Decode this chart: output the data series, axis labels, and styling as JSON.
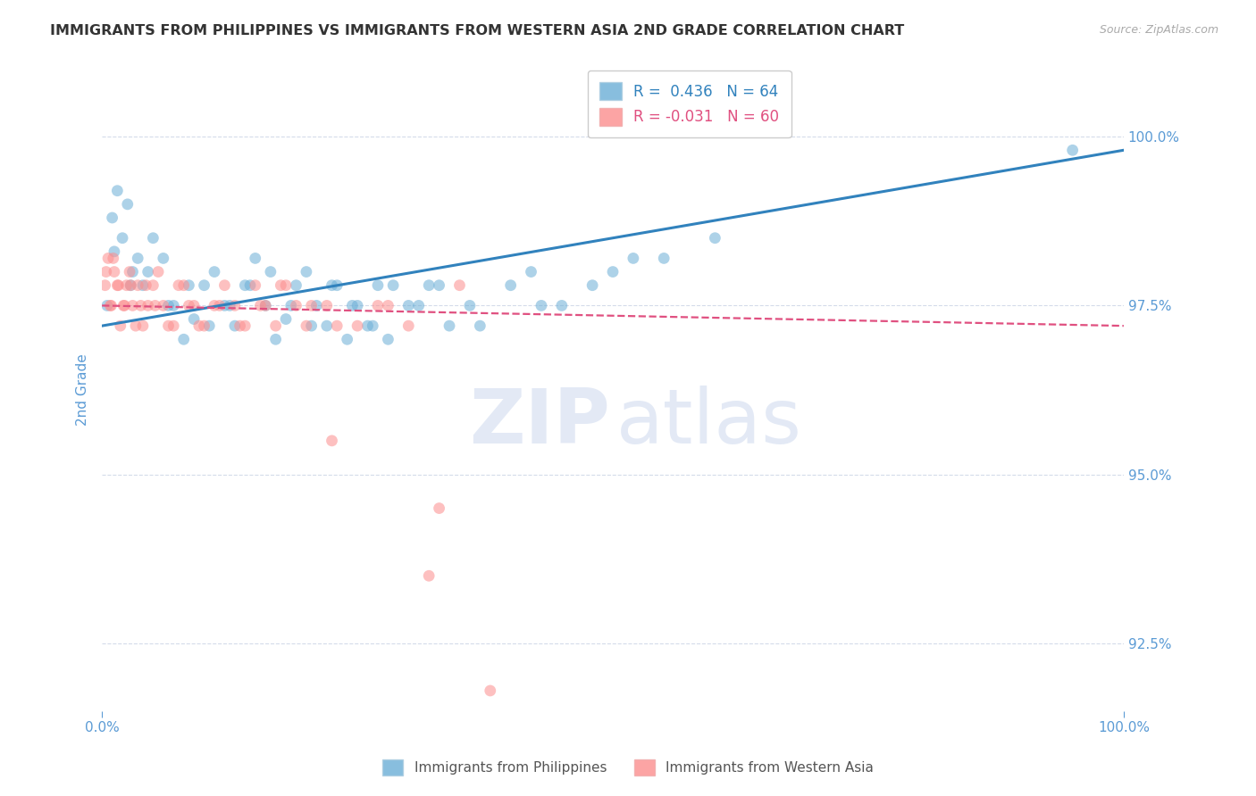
{
  "title": "IMMIGRANTS FROM PHILIPPINES VS IMMIGRANTS FROM WESTERN ASIA 2ND GRADE CORRELATION CHART",
  "source_text": "Source: ZipAtlas.com",
  "ylabel": "2nd Grade",
  "xlim": [
    0.0,
    100.0
  ],
  "ylim": [
    91.5,
    101.0
  ],
  "yticks": [
    92.5,
    95.0,
    97.5,
    100.0
  ],
  "ytick_labels": [
    "92.5%",
    "95.0%",
    "97.5%",
    "100.0%"
  ],
  "xtick_labels": [
    "0.0%",
    "100.0%"
  ],
  "legend_r1": "R =  0.436",
  "legend_n1": "N = 64",
  "legend_r2": "R = -0.031",
  "legend_n2": "N = 60",
  "blue_color": "#6baed6",
  "pink_color": "#fc8d8d",
  "line_blue": "#3182bd",
  "line_pink": "#e05080",
  "blue_scatter_x": [
    0.5,
    1.0,
    1.5,
    2.0,
    2.5,
    3.0,
    3.5,
    4.0,
    5.0,
    6.0,
    7.0,
    8.0,
    9.0,
    10.0,
    11.0,
    12.0,
    13.0,
    14.0,
    15.0,
    16.0,
    17.0,
    18.0,
    19.0,
    20.0,
    21.0,
    22.0,
    23.0,
    24.0,
    25.0,
    26.0,
    27.0,
    28.0,
    30.0,
    32.0,
    34.0,
    36.0,
    40.0,
    42.0,
    45.0,
    48.0,
    50.0,
    55.0,
    60.0,
    95.0,
    1.2,
    2.8,
    4.5,
    6.5,
    8.5,
    10.5,
    12.5,
    14.5,
    16.5,
    18.5,
    20.5,
    22.5,
    24.5,
    26.5,
    28.5,
    31.0,
    33.0,
    37.0,
    43.0,
    52.0
  ],
  "blue_scatter_y": [
    97.5,
    98.8,
    99.2,
    98.5,
    99.0,
    98.0,
    98.2,
    97.8,
    98.5,
    98.2,
    97.5,
    97.0,
    97.3,
    97.8,
    98.0,
    97.5,
    97.2,
    97.8,
    98.2,
    97.5,
    97.0,
    97.3,
    97.8,
    98.0,
    97.5,
    97.2,
    97.8,
    97.0,
    97.5,
    97.2,
    97.8,
    97.0,
    97.5,
    97.8,
    97.2,
    97.5,
    97.8,
    98.0,
    97.5,
    97.8,
    98.0,
    98.2,
    98.5,
    99.8,
    98.3,
    97.8,
    98.0,
    97.5,
    97.8,
    97.2,
    97.5,
    97.8,
    98.0,
    97.5,
    97.2,
    97.8,
    97.5,
    97.2,
    97.8,
    97.5,
    97.8,
    97.2,
    97.5,
    98.2
  ],
  "pink_scatter_x": [
    0.3,
    0.6,
    0.9,
    1.2,
    1.5,
    1.8,
    2.1,
    2.4,
    2.7,
    3.0,
    3.5,
    4.0,
    4.5,
    5.0,
    5.5,
    6.0,
    7.0,
    8.0,
    9.0,
    10.0,
    11.0,
    12.0,
    13.0,
    14.0,
    15.0,
    16.0,
    17.0,
    18.0,
    19.0,
    20.0,
    22.0,
    25.0,
    28.0,
    32.0,
    38.0,
    0.4,
    0.8,
    1.1,
    1.6,
    2.2,
    2.8,
    3.3,
    3.8,
    4.3,
    5.2,
    6.5,
    7.5,
    8.5,
    9.5,
    11.5,
    13.5,
    15.5,
    17.5,
    20.5,
    23.0,
    27.0,
    30.0,
    35.0,
    22.5,
    33.0
  ],
  "pink_scatter_y": [
    97.8,
    98.2,
    97.5,
    98.0,
    97.8,
    97.2,
    97.5,
    97.8,
    98.0,
    97.5,
    97.8,
    97.2,
    97.5,
    97.8,
    98.0,
    97.5,
    97.2,
    97.8,
    97.5,
    97.2,
    97.5,
    97.8,
    97.5,
    97.2,
    97.8,
    97.5,
    97.2,
    97.8,
    97.5,
    97.2,
    97.5,
    97.2,
    97.5,
    93.5,
    91.8,
    98.0,
    97.5,
    98.2,
    97.8,
    97.5,
    97.8,
    97.2,
    97.5,
    97.8,
    97.5,
    97.2,
    97.8,
    97.5,
    97.2,
    97.5,
    97.2,
    97.5,
    97.8,
    97.5,
    97.2,
    97.5,
    97.2,
    97.8,
    95.5,
    94.5
  ],
  "blue_trendline_x": [
    0.0,
    100.0
  ],
  "blue_trendline_y": [
    97.2,
    99.8
  ],
  "pink_trendline_x": [
    0.0,
    100.0
  ],
  "pink_trendline_y": [
    97.5,
    97.2
  ],
  "background_color": "#ffffff",
  "grid_color": "#d0d8e8",
  "title_color": "#333333",
  "axis_label_color": "#5b9bd5",
  "tick_color": "#5b9bd5",
  "legend_label1": "Immigrants from Philippines",
  "legend_label2": "Immigrants from Western Asia"
}
